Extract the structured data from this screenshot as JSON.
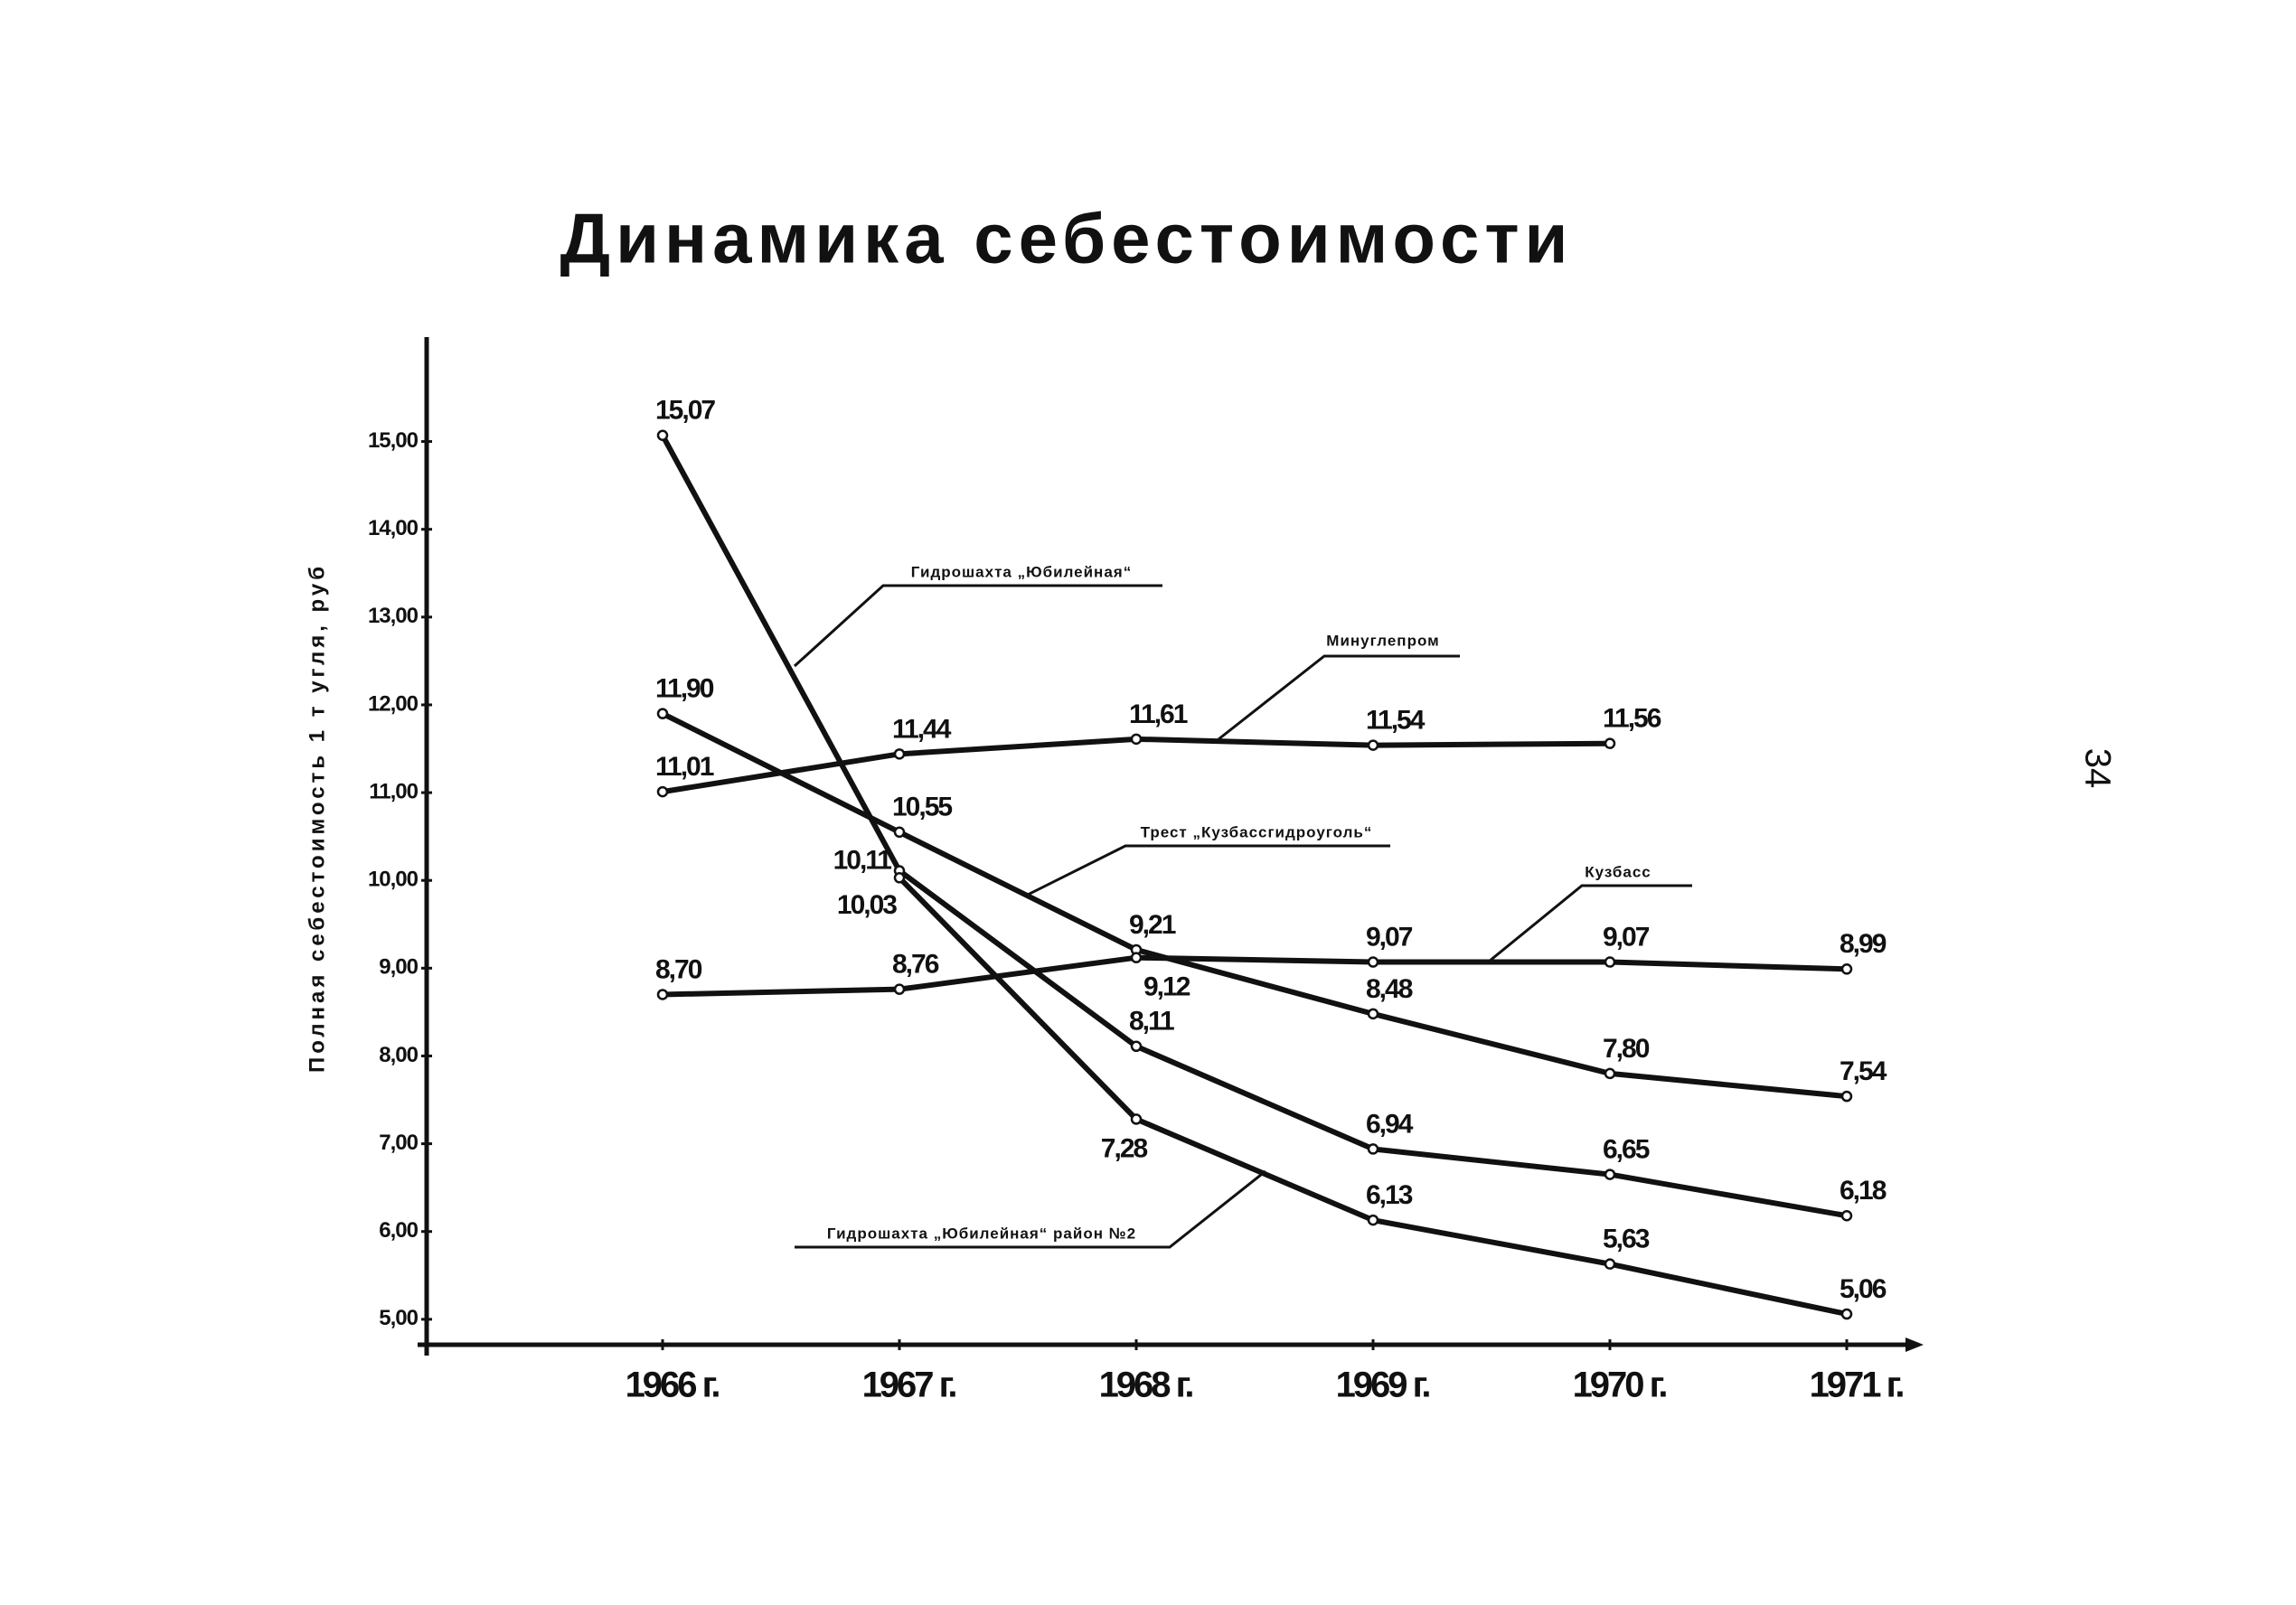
{
  "page_number": "34",
  "chart_data": {
    "type": "line",
    "title": "Динамика себестоимости",
    "y_label": "Полная себестоимость 1 т угля, руб",
    "categories": [
      "1966 г.",
      "1967 г.",
      "1968 г.",
      "1969 г.",
      "1970 г.",
      "1971 г."
    ],
    "ylim": [
      4.7,
      16.2
    ],
    "yticks": [
      {
        "value": 5,
        "label": "5,00"
      },
      {
        "value": 6,
        "label": "6,00"
      },
      {
        "value": 7,
        "label": "7,00"
      },
      {
        "value": 8,
        "label": "8,00"
      },
      {
        "value": 9,
        "label": "9,00"
      },
      {
        "value": 10,
        "label": "10,00"
      },
      {
        "value": 11,
        "label": "11,00"
      },
      {
        "value": 12,
        "label": "12,00"
      },
      {
        "value": 13,
        "label": "13,00"
      },
      {
        "value": 14,
        "label": "14,00"
      },
      {
        "value": 15,
        "label": "15,00"
      }
    ],
    "grid": false,
    "series": [
      {
        "name": "Гидрошахта „Юбилейная“",
        "color": "#111111",
        "values": [
          15.07,
          10.11,
          8.11,
          6.94,
          6.65,
          6.18
        ],
        "value_labels": [
          "15,07",
          "10,11",
          "8,11",
          "6,94",
          "6,65",
          "6,18"
        ]
      },
      {
        "name": "Минуглепром",
        "color": "#111111",
        "values": [
          11.01,
          11.44,
          11.61,
          11.54,
          11.56,
          null
        ],
        "value_labels": [
          "11,01",
          "11,44",
          "11,61",
          "11,54",
          "11,56",
          null
        ]
      },
      {
        "name": "Трест „Кузбассгидроуголь“",
        "color": "#111111",
        "values": [
          11.9,
          10.55,
          9.21,
          8.48,
          7.8,
          7.54
        ],
        "value_labels": [
          "11,90",
          "10,55",
          "9,21",
          "8,48",
          "7,80",
          "7,54"
        ]
      },
      {
        "name": "Кузбасс",
        "color": "#111111",
        "values": [
          8.7,
          8.76,
          9.12,
          9.07,
          9.07,
          8.99
        ],
        "value_labels": [
          "8,70",
          "8,76",
          "9,12",
          "9,07",
          "9,07",
          "8,99"
        ]
      },
      {
        "name": "Гидрошахта „Юбилейная“ район №2",
        "color": "#111111",
        "values": [
          null,
          10.03,
          7.28,
          6.13,
          5.63,
          5.06
        ],
        "value_labels": [
          null,
          "10,03",
          "7,28",
          "6,13",
          "5,63",
          "5,06"
        ]
      }
    ]
  }
}
